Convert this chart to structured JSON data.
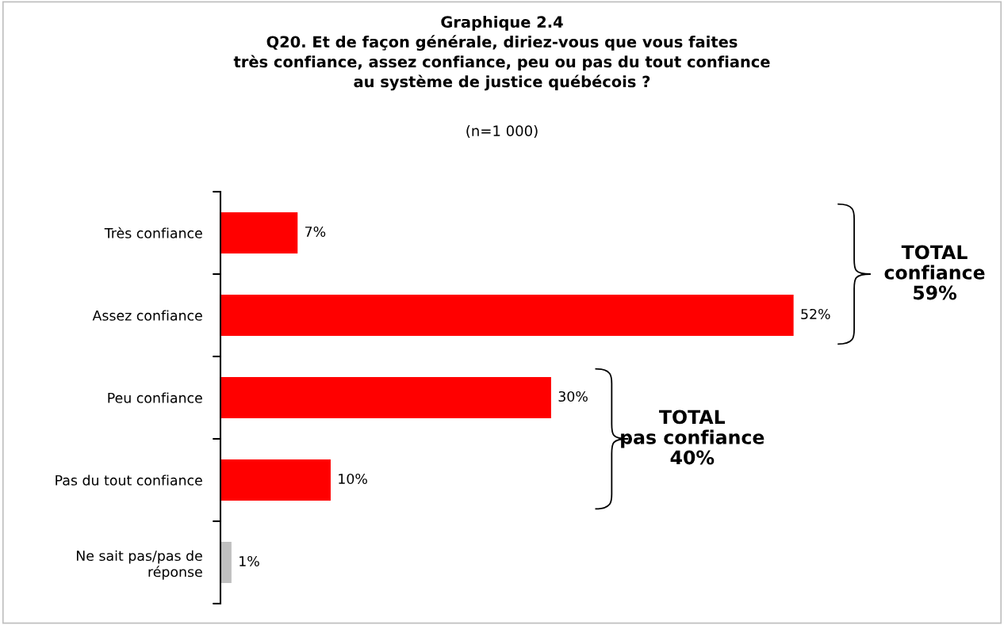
{
  "chart_data": {
    "type": "bar",
    "orientation": "horizontal",
    "title": "Graphique 2.4\nQ20. Et de façon générale, diriez-vous que vous faites\ntrès confiance, assez confiance, peu ou pas du tout confiance\nau système de justice québécois ?",
    "subtitle": "(n=1 000)",
    "categories": [
      "Très confiance",
      "Assez confiance",
      "Peu confiance",
      "Pas du tout confiance",
      "Ne sait pas/pas de\nréponse"
    ],
    "values": [
      7,
      52,
      30,
      10,
      1
    ],
    "colors": [
      "#ff0000",
      "#ff0000",
      "#ff0000",
      "#ff0000",
      "#c0c0c0"
    ],
    "value_labels": [
      "7%",
      "52%",
      "30%",
      "10%",
      "1%"
    ],
    "grid": false,
    "legend": false,
    "annotations": [
      "TOTAL\nconfiance\n59%",
      "TOTAL\npas confiance\n40%"
    ]
  }
}
